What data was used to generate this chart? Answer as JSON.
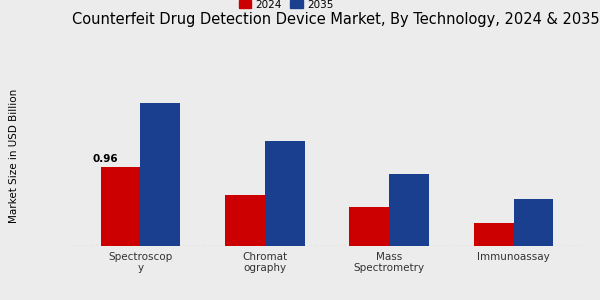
{
  "title": "Counterfeit Drug Detection Device Market, By Technology, 2024 & 2035",
  "ylabel": "Market Size in USD Billion",
  "categories": [
    "Spectroscop\ny",
    "Chromat\nography",
    "Mass\nSpectrometry",
    "Immunoassay"
  ],
  "values_2024": [
    0.96,
    0.62,
    0.48,
    0.28
  ],
  "values_2035": [
    1.75,
    1.28,
    0.88,
    0.58
  ],
  "color_2024": "#cc0000",
  "color_2035": "#1a3f8f",
  "annotation_text": "0.96",
  "background_color": "#ececec",
  "bar_width": 0.32,
  "title_fontsize": 10.5,
  "label_fontsize": 7.5,
  "tick_fontsize": 7.5,
  "legend_labels": [
    "2024",
    "2035"
  ],
  "bottom_stripe_color": "#cc0000",
  "ylim_max": 2.2
}
